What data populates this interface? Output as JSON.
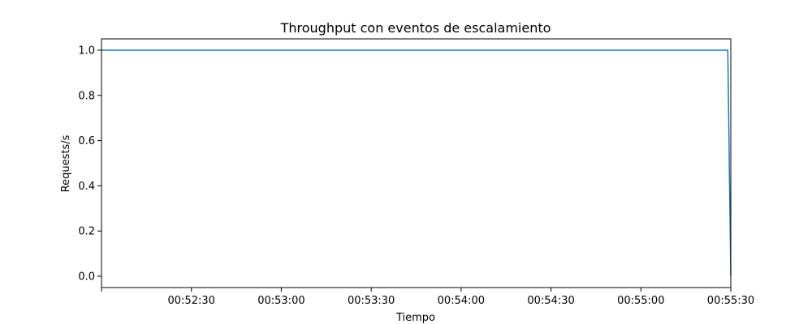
{
  "chart_data": {
    "type": "line",
    "title": "Throughput con eventos de escalamiento",
    "xlabel": "Tiempo",
    "ylabel": "Requests/s",
    "x_ticks": [
      "00:52:30",
      "00:53:00",
      "00:53:30",
      "00:54:00",
      "00:54:30",
      "00:55:00",
      "00:55:30"
    ],
    "y_ticks": [
      "0.0",
      "0.2",
      "0.4",
      "0.6",
      "0.8",
      "1.0"
    ],
    "xlim": [
      "00:52:00",
      "00:55:30"
    ],
    "ylim": [
      -0.05,
      1.05
    ],
    "grid": false,
    "series": [
      {
        "color": "#1f77b4",
        "x": [
          "00:52:00",
          "00:55:29",
          "00:55:30"
        ],
        "y": [
          1.0,
          1.0,
          0.0
        ]
      }
    ]
  }
}
